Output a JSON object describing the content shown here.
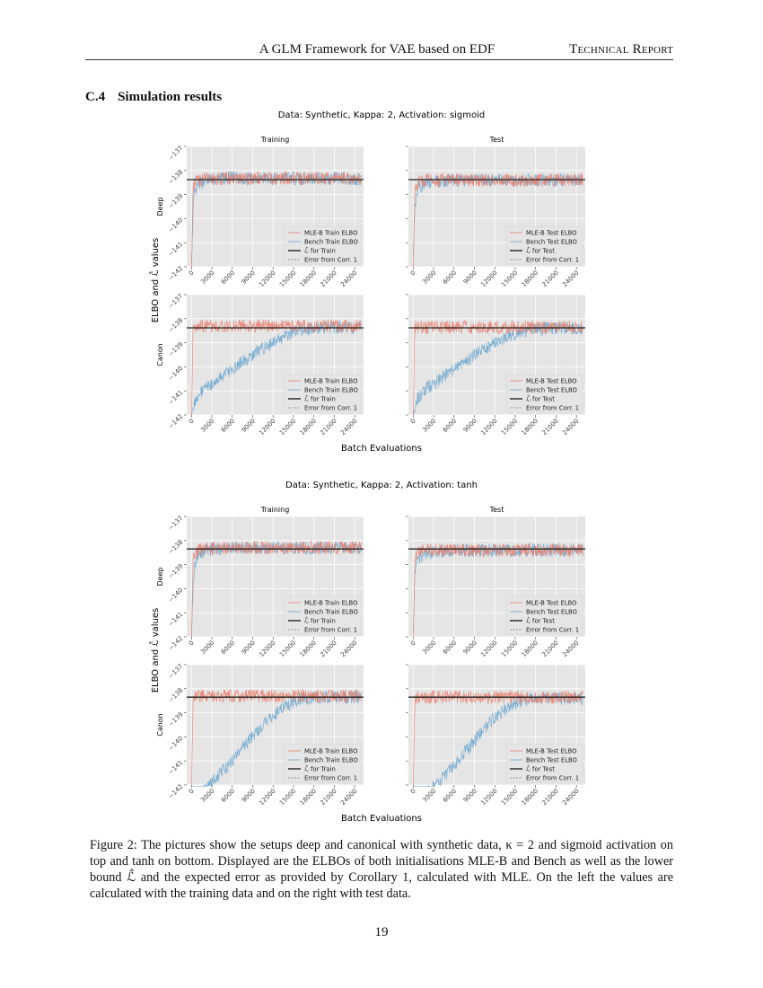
{
  "header": {
    "title": "A GLM Framework for VAE based on EDF",
    "right": "Technical Report"
  },
  "section": {
    "number": "C.4",
    "title": "Simulation results"
  },
  "colors": {
    "mle": "#e8806e",
    "bench": "#6fa8cf",
    "lhat": "#222222",
    "panel_bg": "#e5e5e5",
    "grid": "#ffffff"
  },
  "chart_data": [
    {
      "type": "line",
      "title": "Data: Synthetic, Kappa: 2, Activation: sigmoid",
      "ylabel": "ELBO and ℒ̂ values",
      "xlabel": "Batch Evaluations",
      "row_labels": [
        "Deep",
        "Canon"
      ],
      "col_titles": [
        "Training",
        "Test"
      ],
      "ylim": [
        -142,
        -137
      ],
      "xlim": [
        -700,
        25300
      ],
      "grid": true,
      "legend_placement": "bottom-right",
      "yticks": [
        -137,
        -138,
        -139,
        -140,
        -141,
        -142
      ],
      "xticks": [
        0,
        3000,
        6000,
        9000,
        12000,
        15000,
        18000,
        21000,
        24000
      ],
      "x": [
        0,
        250,
        500,
        1000,
        2000,
        4000,
        6000,
        8000,
        10000,
        12000,
        14000,
        16000,
        18000,
        20000,
        22000,
        24000,
        25000
      ],
      "panels": [
        {
          "row": "Deep",
          "col": "Training",
          "lhat": -138.38,
          "legend": [
            "MLE-B Train ELBO",
            "Bench Train ELBO",
            "ℒ̂  for Train",
            "Error from Corr. 1"
          ],
          "series": [
            {
              "name": "MLE-B Train ELBO",
              "values": [
                -142,
                -138.8,
                -138.5,
                -138.4,
                -138.35,
                -138.35,
                -138.3,
                -138.35,
                -138.3,
                -138.35,
                -138.3,
                -138.35,
                -138.3,
                -138.35,
                -138.3,
                -138.35,
                -138.35
              ]
            },
            {
              "name": "Bench Train ELBO",
              "values": [
                -142,
                -139.5,
                -139,
                -138.6,
                -138.4,
                -138.35,
                -138.3,
                -138.35,
                -138.3,
                -138.35,
                -138.3,
                -138.35,
                -138.3,
                -138.35,
                -138.3,
                -138.35,
                -138.35
              ]
            }
          ]
        },
        {
          "row": "Deep",
          "col": "Test",
          "lhat": -138.38,
          "legend": [
            "MLE-B Test ELBO",
            "Bench Test ELBO",
            "ℒ̂  for Test",
            "Error from Corr. 1"
          ],
          "series": [
            {
              "name": "MLE-B Test ELBO",
              "values": [
                -142,
                -138.9,
                -138.6,
                -138.45,
                -138.4,
                -138.4,
                -138.4,
                -138.4,
                -138.4,
                -138.4,
                -138.4,
                -138.4,
                -138.4,
                -138.4,
                -138.4,
                -138.4,
                -138.4
              ]
            },
            {
              "name": "Bench Test ELBO",
              "values": [
                -141.5,
                -139.4,
                -139,
                -138.7,
                -138.5,
                -138.45,
                -138.4,
                -138.4,
                -138.4,
                -138.4,
                -138.4,
                -138.4,
                -138.4,
                -138.4,
                -138.4,
                -138.4,
                -138.4
              ]
            }
          ]
        },
        {
          "row": "Canon",
          "col": "Training",
          "lhat": -138.38,
          "legend": [
            "MLE-B Train ELBO",
            "Bench Train ELBO",
            "ℒ̂  for Train",
            "Error from Corr. 1"
          ],
          "series": [
            {
              "name": "MLE-B Train ELBO",
              "values": [
                -142,
                -138.3,
                -138.3,
                -138.3,
                -138.3,
                -138.3,
                -138.3,
                -138.3,
                -138.3,
                -138.3,
                -138.3,
                -138.3,
                -138.3,
                -138.3,
                -138.3,
                -138.3,
                -138.3
              ]
            },
            {
              "name": "Bench Train ELBO",
              "values": [
                -142,
                -141.6,
                -141.4,
                -141.2,
                -140.9,
                -140.5,
                -140.1,
                -139.7,
                -139.3,
                -139.0,
                -138.7,
                -138.5,
                -138.4,
                -138.35,
                -138.35,
                -138.35,
                -138.4
              ]
            }
          ]
        },
        {
          "row": "Canon",
          "col": "Test",
          "lhat": -138.38,
          "legend": [
            "MLE-B Test ELBO",
            "Bench Test ELBO",
            "ℒ̂  for Test",
            "Error from Corr. 1"
          ],
          "series": [
            {
              "name": "MLE-B Test ELBO",
              "values": [
                -142,
                -138.35,
                -138.35,
                -138.35,
                -138.35,
                -138.35,
                -138.35,
                -138.35,
                -138.35,
                -138.35,
                -138.35,
                -138.35,
                -138.35,
                -138.35,
                -138.35,
                -138.35,
                -138.35
              ]
            },
            {
              "name": "Bench Test ELBO",
              "values": [
                -142,
                -141.6,
                -141.4,
                -141.2,
                -140.9,
                -140.5,
                -140.1,
                -139.7,
                -139.35,
                -139.0,
                -138.75,
                -138.55,
                -138.45,
                -138.4,
                -138.4,
                -138.4,
                -138.45
              ]
            }
          ]
        }
      ]
    },
    {
      "type": "line",
      "title": "Data: Synthetic, Kappa: 2, Activation: tanh",
      "ylabel": "ELBO and ℒ̂ values",
      "xlabel": "Batch Evaluations",
      "row_labels": [
        "Deep",
        "Canon"
      ],
      "col_titles": [
        "Training",
        "Test"
      ],
      "ylim": [
        -142,
        -137
      ],
      "xlim": [
        -700,
        25300
      ],
      "grid": true,
      "legend_placement": "bottom-right",
      "yticks": [
        -137,
        -138,
        -139,
        -140,
        -141,
        -142
      ],
      "xticks": [
        0,
        3000,
        6000,
        9000,
        12000,
        15000,
        18000,
        21000,
        24000
      ],
      "x": [
        0,
        250,
        500,
        1000,
        2000,
        4000,
        6000,
        8000,
        10000,
        12000,
        14000,
        16000,
        18000,
        20000,
        22000,
        24000,
        25000
      ],
      "panels": [
        {
          "row": "Deep",
          "col": "Training",
          "lhat": -138.35,
          "legend": [
            "MLE-B Train ELBO",
            "Bench Train ELBO",
            "ℒ̂  for Train",
            "Error from Corr. 1"
          ],
          "series": [
            {
              "name": "MLE-B Train ELBO",
              "values": [
                -142,
                -138.8,
                -138.5,
                -138.4,
                -138.35,
                -138.3,
                -138.3,
                -138.3,
                -138.3,
                -138.3,
                -138.3,
                -138.3,
                -138.3,
                -138.3,
                -138.3,
                -138.3,
                -138.3
              ]
            },
            {
              "name": "Bench Train ELBO",
              "values": [
                -142,
                -139.6,
                -139,
                -138.6,
                -138.4,
                -138.35,
                -138.3,
                -138.3,
                -138.3,
                -138.3,
                -138.3,
                -138.3,
                -138.3,
                -138.3,
                -138.3,
                -138.3,
                -138.3
              ]
            }
          ]
        },
        {
          "row": "Deep",
          "col": "Test",
          "lhat": -138.35,
          "legend": [
            "MLE-B Test ELBO",
            "Bench Test ELBO",
            "ℒ̂  for Test",
            "Error from Corr. 1"
          ],
          "series": [
            {
              "name": "MLE-B Test ELBO",
              "values": [
                -142,
                -138.9,
                -138.6,
                -138.45,
                -138.4,
                -138.4,
                -138.4,
                -138.4,
                -138.4,
                -138.4,
                -138.4,
                -138.4,
                -138.4,
                -138.4,
                -138.4,
                -138.4,
                -138.4
              ]
            },
            {
              "name": "Bench Test ELBO",
              "values": [
                -141.8,
                -139.4,
                -139,
                -138.7,
                -138.5,
                -138.45,
                -138.4,
                -138.4,
                -138.4,
                -138.4,
                -138.4,
                -138.4,
                -138.4,
                -138.4,
                -138.4,
                -138.4,
                -138.4
              ]
            }
          ]
        },
        {
          "row": "Canon",
          "col": "Training",
          "lhat": -138.35,
          "legend": [
            "MLE-B Train ELBO",
            "Bench Train ELBO",
            "ℒ̂  for Train",
            "Error from Corr. 1"
          ],
          "series": [
            {
              "name": "MLE-B Train ELBO",
              "values": [
                -142,
                -138.3,
                -138.3,
                -138.3,
                -138.3,
                -138.3,
                -138.3,
                -138.3,
                -138.3,
                -138.3,
                -138.3,
                -138.3,
                -138.3,
                -138.3,
                -138.3,
                -138.3,
                -138.3
              ]
            },
            {
              "name": "Bench Train ELBO",
              "values": [
                -142.5,
                -142.5,
                -142.5,
                -142.4,
                -142.2,
                -141.6,
                -141.0,
                -140.3,
                -139.7,
                -139.1,
                -138.7,
                -138.45,
                -138.35,
                -138.35,
                -138.35,
                -138.35,
                -138.4
              ]
            }
          ]
        },
        {
          "row": "Canon",
          "col": "Test",
          "lhat": -138.35,
          "legend": [
            "MLE-B Test ELBO",
            "Bench Test ELBO",
            "ℒ̂  for Test",
            "Error from Corr. 1"
          ],
          "series": [
            {
              "name": "MLE-B Test ELBO",
              "values": [
                -142,
                -138.35,
                -138.35,
                -138.35,
                -138.35,
                -138.35,
                -138.35,
                -138.35,
                -138.35,
                -138.35,
                -138.35,
                -138.35,
                -138.35,
                -138.35,
                -138.35,
                -138.35,
                -138.35
              ]
            },
            {
              "name": "Bench Test ELBO",
              "values": [
                -142.5,
                -142.5,
                -142.5,
                -142.5,
                -142.3,
                -141.8,
                -141.2,
                -140.5,
                -139.8,
                -139.2,
                -138.8,
                -138.5,
                -138.4,
                -138.4,
                -138.4,
                -138.4,
                -138.45
              ]
            }
          ]
        }
      ]
    }
  ],
  "caption": "Figure 2: The pictures show the setups deep and canonical with synthetic data, κ = 2 and sigmoid activation on top and tanh on bottom. Displayed are the ELBOs of both initialisations MLE-B and Bench as well as the lower bound ℒ̂ and the expected error as provided by Corollary 1, calculated with MLE. On the left the values are calculated with the training data and on the right with test data.",
  "page_number": "19"
}
